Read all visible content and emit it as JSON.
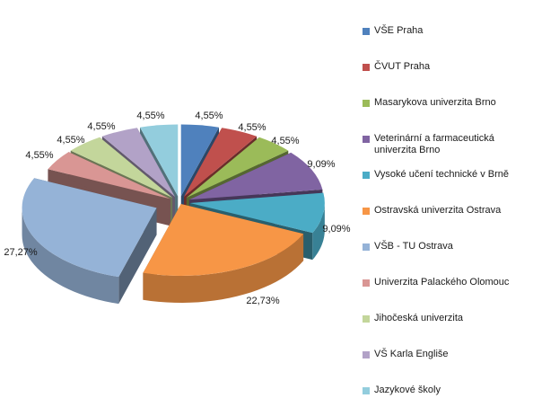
{
  "chart_data": {
    "type": "pie",
    "style": "exploded-3d",
    "legend_position": "right",
    "slices": [
      {
        "label": "VŠE Praha",
        "value": 4.55,
        "value_label": "4,55%",
        "color": "#4f81bd"
      },
      {
        "label": "ČVUT Praha",
        "value": 4.55,
        "value_label": "4,55%",
        "color": "#c0504d"
      },
      {
        "label": "Masarykova univerzita Brno",
        "value": 4.55,
        "value_label": "4,55%",
        "color": "#9bbb59"
      },
      {
        "label": "Veterinární a farmaceutická univerzita Brno",
        "value": 9.09,
        "value_label": "9,09%",
        "color": "#8064a2"
      },
      {
        "label": "Vysoké učení technické v Brně",
        "value": 9.09,
        "value_label": "9,09%",
        "color": "#4bacc6"
      },
      {
        "label": "Ostravská univerzita Ostrava",
        "value": 22.73,
        "value_label": "22,73%",
        "color": "#f79646"
      },
      {
        "label": "VŠB - TU Ostrava",
        "value": 27.27,
        "value_label": "27,27%",
        "color": "#95b3d7"
      },
      {
        "label": "Univerzita Palackého Olomouc",
        "value": 4.55,
        "value_label": "4,55%",
        "color": "#d99694"
      },
      {
        "label": "Jihočeská univerzita",
        "value": 4.55,
        "value_label": "4,55%",
        "color": "#c3d69b"
      },
      {
        "label": "VŠ Karla Engliše",
        "value": 4.55,
        "value_label": "4,55%",
        "color": "#b2a2c7"
      },
      {
        "label": "Jazykové školy",
        "value": 4.55,
        "value_label": "4,55%",
        "color": "#93cddd"
      }
    ]
  }
}
